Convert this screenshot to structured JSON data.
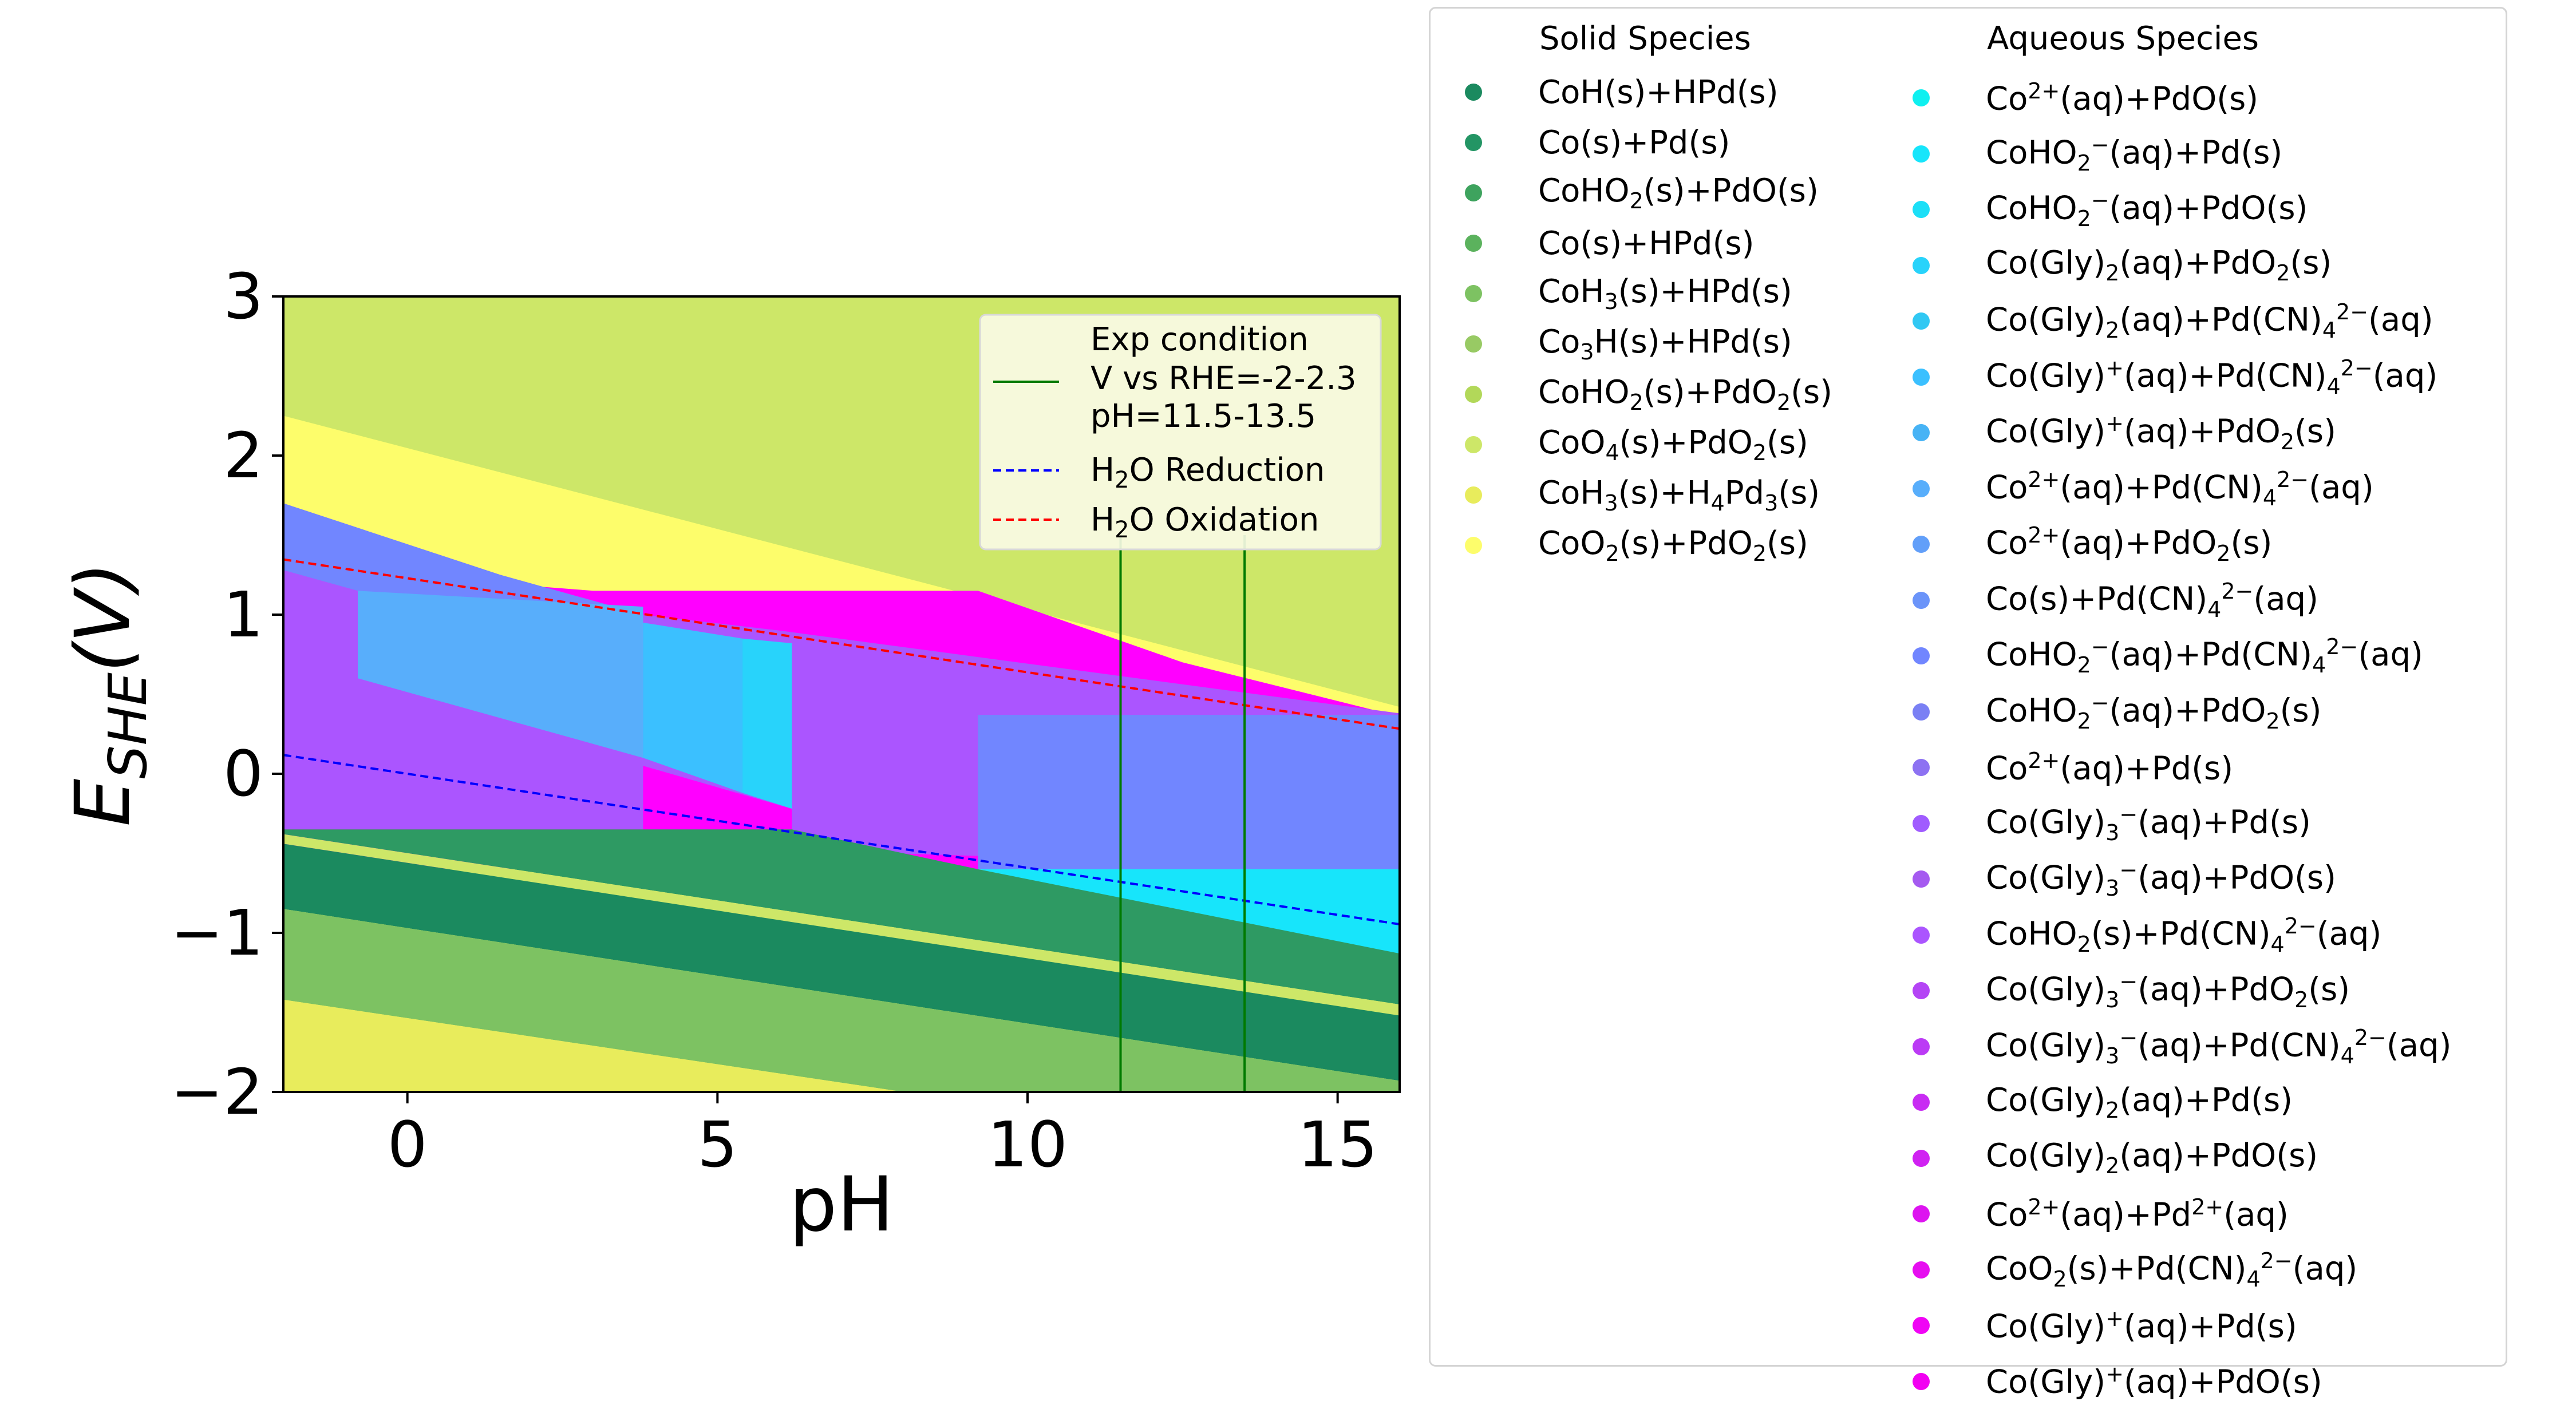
{
  "chart_data": {
    "type": "area",
    "xlabel": "pH",
    "ylabel_main": "E",
    "ylabel_sub": "SHE",
    "ylabel_suffix": "(V)",
    "xlim": [
      -2,
      16
    ],
    "ylim": [
      -2,
      3
    ],
    "xticks": [
      0,
      5,
      10,
      15
    ],
    "yticks": [
      -2,
      -1,
      0,
      1,
      2,
      3
    ],
    "grid": false,
    "inset_legend": {
      "placement": "top-right",
      "entries": [
        {
          "label_lines": [
            "Exp condition",
            "V vs RHE=-2-2.3",
            "pH=11.5-13.5"
          ],
          "color": "#007a00",
          "style": "solid"
        },
        {
          "label_pre": "H",
          "label_sub": "2",
          "label_post": "O Reduction",
          "color": "#0000ff",
          "style": "dashed"
        },
        {
          "label_pre": "H",
          "label_sub": "2",
          "label_post": "O Oxidation",
          "color": "#ff0000",
          "style": "dashed"
        }
      ]
    },
    "lines": [
      {
        "name": "H2O Reduction",
        "x": [
          -2,
          16
        ],
        "y": [
          0.118,
          -0.946
        ],
        "color": "#0000ff",
        "style": "dashed"
      },
      {
        "name": "H2O Oxidation",
        "x": [
          -2,
          16
        ],
        "y": [
          1.347,
          0.283
        ],
        "color": "#ff0000",
        "style": "dashed"
      },
      {
        "name": "pH=11.5",
        "x": [
          11.5,
          11.5
        ],
        "y": [
          -2,
          1.5
        ],
        "color": "#007a00",
        "style": "solid"
      },
      {
        "name": "pH=13.5",
        "x": [
          13.5,
          13.5
        ],
        "y": [
          -2,
          1.5
        ],
        "color": "#007a00",
        "style": "solid"
      }
    ],
    "regions": [
      {
        "color": "#cde768",
        "points": [
          [
            -2,
            3
          ],
          [
            16,
            3
          ],
          [
            16,
            -2
          ],
          [
            -2,
            -2
          ]
        ]
      },
      {
        "color": "#fdfd6b",
        "points": [
          [
            -2,
            2.25
          ],
          [
            16,
            0.42
          ],
          [
            16,
            -2
          ],
          [
            -2,
            -2
          ]
        ]
      },
      {
        "color": "#ff00ff",
        "points": [
          [
            -2,
            1.3
          ],
          [
            3,
            1.15
          ],
          [
            9.2,
            1.15
          ],
          [
            12.5,
            0.7
          ],
          [
            16,
            0.36
          ],
          [
            16,
            -0.6
          ],
          [
            -2,
            -0.6
          ]
        ]
      },
      {
        "color": "#ab55ff",
        "points": [
          [
            -2,
            1.7
          ],
          [
            1.5,
            1.25
          ],
          [
            3.8,
            1.0
          ],
          [
            6,
            0.9
          ],
          [
            16,
            0.38
          ],
          [
            16,
            -0.6
          ],
          [
            6.2,
            -0.48
          ],
          [
            3.8,
            -0.35
          ],
          [
            -2,
            -0.35
          ]
        ]
      },
      {
        "color": "#7186ff",
        "points": [
          [
            -2,
            1.7
          ],
          [
            1.5,
            1.25
          ],
          [
            3.8,
            1.0
          ],
          [
            3.8,
            0.1
          ],
          [
            2.5,
            0.35
          ],
          [
            -0.8,
            0.6
          ],
          [
            -0.8,
            1.15
          ],
          [
            -2,
            1.28
          ]
        ]
      },
      {
        "color": "#58aefb",
        "points": [
          [
            -0.8,
            1.15
          ],
          [
            3.8,
            1.05
          ],
          [
            3.8,
            0.1
          ],
          [
            -0.8,
            0.6
          ]
        ]
      },
      {
        "color": "#3bc0ff",
        "points": [
          [
            3.8,
            0.95
          ],
          [
            5.4,
            0.85
          ],
          [
            5.4,
            -0.12
          ],
          [
            3.8,
            0.1
          ]
        ]
      },
      {
        "color": "#28d3fb",
        "points": [
          [
            5.4,
            0.85
          ],
          [
            6.2,
            0.82
          ],
          [
            6.2,
            -0.22
          ],
          [
            5.4,
            -0.12
          ]
        ]
      },
      {
        "color": "#ff00ff",
        "points": [
          [
            3.8,
            0.05
          ],
          [
            6.2,
            -0.22
          ],
          [
            6.2,
            -0.5
          ],
          [
            3.8,
            -0.35
          ]
        ]
      },
      {
        "color": "#7186ff",
        "points": [
          [
            9.2,
            0.37
          ],
          [
            16,
            0.37
          ],
          [
            16,
            -0.6
          ],
          [
            9.2,
            -0.6
          ]
        ]
      },
      {
        "color": "#17e5fb",
        "points": [
          [
            9.2,
            -0.6
          ],
          [
            16,
            -0.6
          ],
          [
            16,
            -1.15
          ],
          [
            9.2,
            -0.6
          ]
        ]
      },
      {
        "color": "#2e9a63",
        "points": [
          [
            -2,
            -0.35
          ],
          [
            6.2,
            -0.35
          ],
          [
            9.2,
            -0.6
          ],
          [
            16,
            -1.13
          ],
          [
            16,
            -1.45
          ],
          [
            -2,
            -0.38
          ]
        ]
      },
      {
        "color": "#cde768",
        "points": [
          [
            -2,
            -0.38
          ],
          [
            16,
            -1.45
          ],
          [
            16,
            -1.52
          ],
          [
            -2,
            -0.44
          ]
        ]
      },
      {
        "color": "#1b8a5f",
        "points": [
          [
            -2,
            -0.44
          ],
          [
            16,
            -1.52
          ],
          [
            16,
            -1.93
          ],
          [
            -2,
            -0.85
          ]
        ]
      },
      {
        "color": "#7dc262",
        "points": [
          [
            -2,
            -0.85
          ],
          [
            16,
            -1.93
          ],
          [
            16,
            -2
          ],
          [
            8,
            -2
          ],
          [
            -2,
            -1.42
          ]
        ]
      },
      {
        "color": "#e8ec5c",
        "points": [
          [
            -2,
            -1.42
          ],
          [
            8,
            -2
          ],
          [
            -2,
            -2
          ]
        ]
      }
    ]
  },
  "legend": {
    "solid_header": "Solid Species",
    "aqueous_header": "Aqueous Species",
    "solid": [
      {
        "color": "#1b8a5f",
        "label_html": "CoH(s)+HPd(s)"
      },
      {
        "color": "#239564",
        "label_html": "Co(s)+Pd(s)"
      },
      {
        "color": "#3ea35e",
        "label_html": "CoHO<sub>2</sub>(s)+PdO(s)"
      },
      {
        "color": "#5bb25d",
        "label_html": "Co(s)+HPd(s)"
      },
      {
        "color": "#7dc262",
        "label_html": "CoH<sub>3</sub>(s)+HPd(s)"
      },
      {
        "color": "#98ca64",
        "label_html": "Co<sub>3</sub>H(s)+HPd(s)"
      },
      {
        "color": "#b2d859",
        "label_html": "CoHO<sub>2</sub>(s)+PdO<sub>2</sub>(s)"
      },
      {
        "color": "#cde768",
        "label_html": "CoO<sub>4</sub>(s)+PdO<sub>2</sub>(s)"
      },
      {
        "color": "#e8ec5c",
        "label_html": "CoH<sub>3</sub>(s)+H<sub>4</sub>Pd<sub>3</sub>(s)"
      },
      {
        "color": "#fdfd6b",
        "label_html": "CoO<sub>2</sub>(s)+PdO<sub>2</sub>(s)"
      }
    ],
    "aqueous": [
      {
        "color": "#0ff0f0",
        "label_html": "Co<sup>2+</sup>(aq)+PdO(s)"
      },
      {
        "color": "#17e5fb",
        "label_html": "CoHO<sub>2</sub><sup>−</sup>(aq)+Pd(s)"
      },
      {
        "color": "#1cdff7",
        "label_html": "CoHO<sub>2</sub><sup>−</sup>(aq)+PdO(s)"
      },
      {
        "color": "#28d3fb",
        "label_html": "Co(Gly)<sub>2</sub>(aq)+PdO<sub>2</sub>(s)"
      },
      {
        "color": "#31c8f3",
        "label_html": "Co(Gly)<sub>2</sub>(aq)+Pd(CN)<sub>4</sub><sup>2−</sup>(aq)"
      },
      {
        "color": "#3bc0ff",
        "label_html": "Co(Gly)<sup>+</sup>(aq)+Pd(CN)<sub>4</sub><sup>2−</sup>(aq)"
      },
      {
        "color": "#47b3f5",
        "label_html": "Co(Gly)<sup>+</sup>(aq)+PdO<sub>2</sub>(s)"
      },
      {
        "color": "#58aefb",
        "label_html": "Co<sup>2+</sup>(aq)+Pd(CN)<sub>4</sub><sup>2−</sup>(aq)"
      },
      {
        "color": "#629ff9",
        "label_html": "Co<sup>2+</sup>(aq)+PdO<sub>2</sub>(s)"
      },
      {
        "color": "#6b94f9",
        "label_html": "Co(s)+Pd(CN)<sub>4</sub><sup>2−</sup>(aq)"
      },
      {
        "color": "#7186ff",
        "label_html": "CoHO<sub>2</sub><sup>−</sup>(aq)+Pd(CN)<sub>4</sub><sup>2−</sup>(aq)"
      },
      {
        "color": "#7a80f4",
        "label_html": "CoHO<sub>2</sub><sup>−</sup>(aq)+PdO<sub>2</sub>(s)"
      },
      {
        "color": "#8d72f2",
        "label_html": "Co<sup>2+</sup>(aq)+Pd(s)"
      },
      {
        "color": "#a05cff",
        "label_html": "Co(Gly)<sub>3</sub><sup>−</sup>(aq)+Pd(s)"
      },
      {
        "color": "#a55af0",
        "label_html": "Co(Gly)<sub>3</sub><sup>−</sup>(aq)+PdO(s)"
      },
      {
        "color": "#ab55ff",
        "label_html": "CoHO<sub>2</sub>(s)+Pd(CN)<sub>4</sub><sup>2−</sup>(aq)"
      },
      {
        "color": "#b444f5",
        "label_html": "Co(Gly)<sub>3</sub><sup>−</sup>(aq)+PdO<sub>2</sub>(s)"
      },
      {
        "color": "#bb3bf5",
        "label_html": "Co(Gly)<sub>3</sub><sup>−</sup>(aq)+Pd(CN)<sub>4</sub><sup>2−</sup>(aq)"
      },
      {
        "color": "#c82cf3",
        "label_html": "Co(Gly)<sub>2</sub>(aq)+Pd(s)"
      },
      {
        "color": "#d022f2",
        "label_html": "Co(Gly)<sub>2</sub>(aq)+PdO(s)"
      },
      {
        "color": "#dd14f0",
        "label_html": "Co<sup>2+</sup>(aq)+Pd<sup>2+</sup>(aq)"
      },
      {
        "color": "#e60ef0",
        "label_html": "CoO<sub>2</sub>(s)+Pd(CN)<sub>4</sub><sup>2−</sup>(aq)"
      },
      {
        "color": "#f005f5",
        "label_html": "Co(Gly)<sup>+</sup>(aq)+Pd(s)"
      },
      {
        "color": "#f200f2",
        "label_html": "Co(Gly)<sup>+</sup>(aq)+PdO(s)"
      }
    ]
  }
}
